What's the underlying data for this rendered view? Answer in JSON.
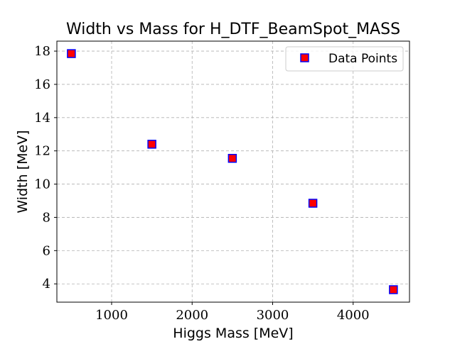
{
  "chart_data": {
    "type": "scatter",
    "title": "Width vs Mass for H_DTF_BeamSpot_MASS",
    "xlabel": "Higgs Mass [MeV]",
    "ylabel": "Width [MeV]",
    "xlim": [
      320,
      4700
    ],
    "ylim": [
      2.9,
      18.6
    ],
    "xticks": [
      1000,
      2000,
      3000,
      4000
    ],
    "yticks": [
      4,
      6,
      8,
      10,
      12,
      14,
      16,
      18
    ],
    "grid": true,
    "legend_position": "top-right",
    "series": [
      {
        "name": "Data Points",
        "marker": "square",
        "face_color": "#ff0000",
        "edge_color": "#0000ff",
        "x": [
          500,
          1500,
          2500,
          3500,
          4500
        ],
        "y": [
          17.85,
          12.4,
          11.55,
          8.85,
          3.65
        ]
      }
    ]
  }
}
